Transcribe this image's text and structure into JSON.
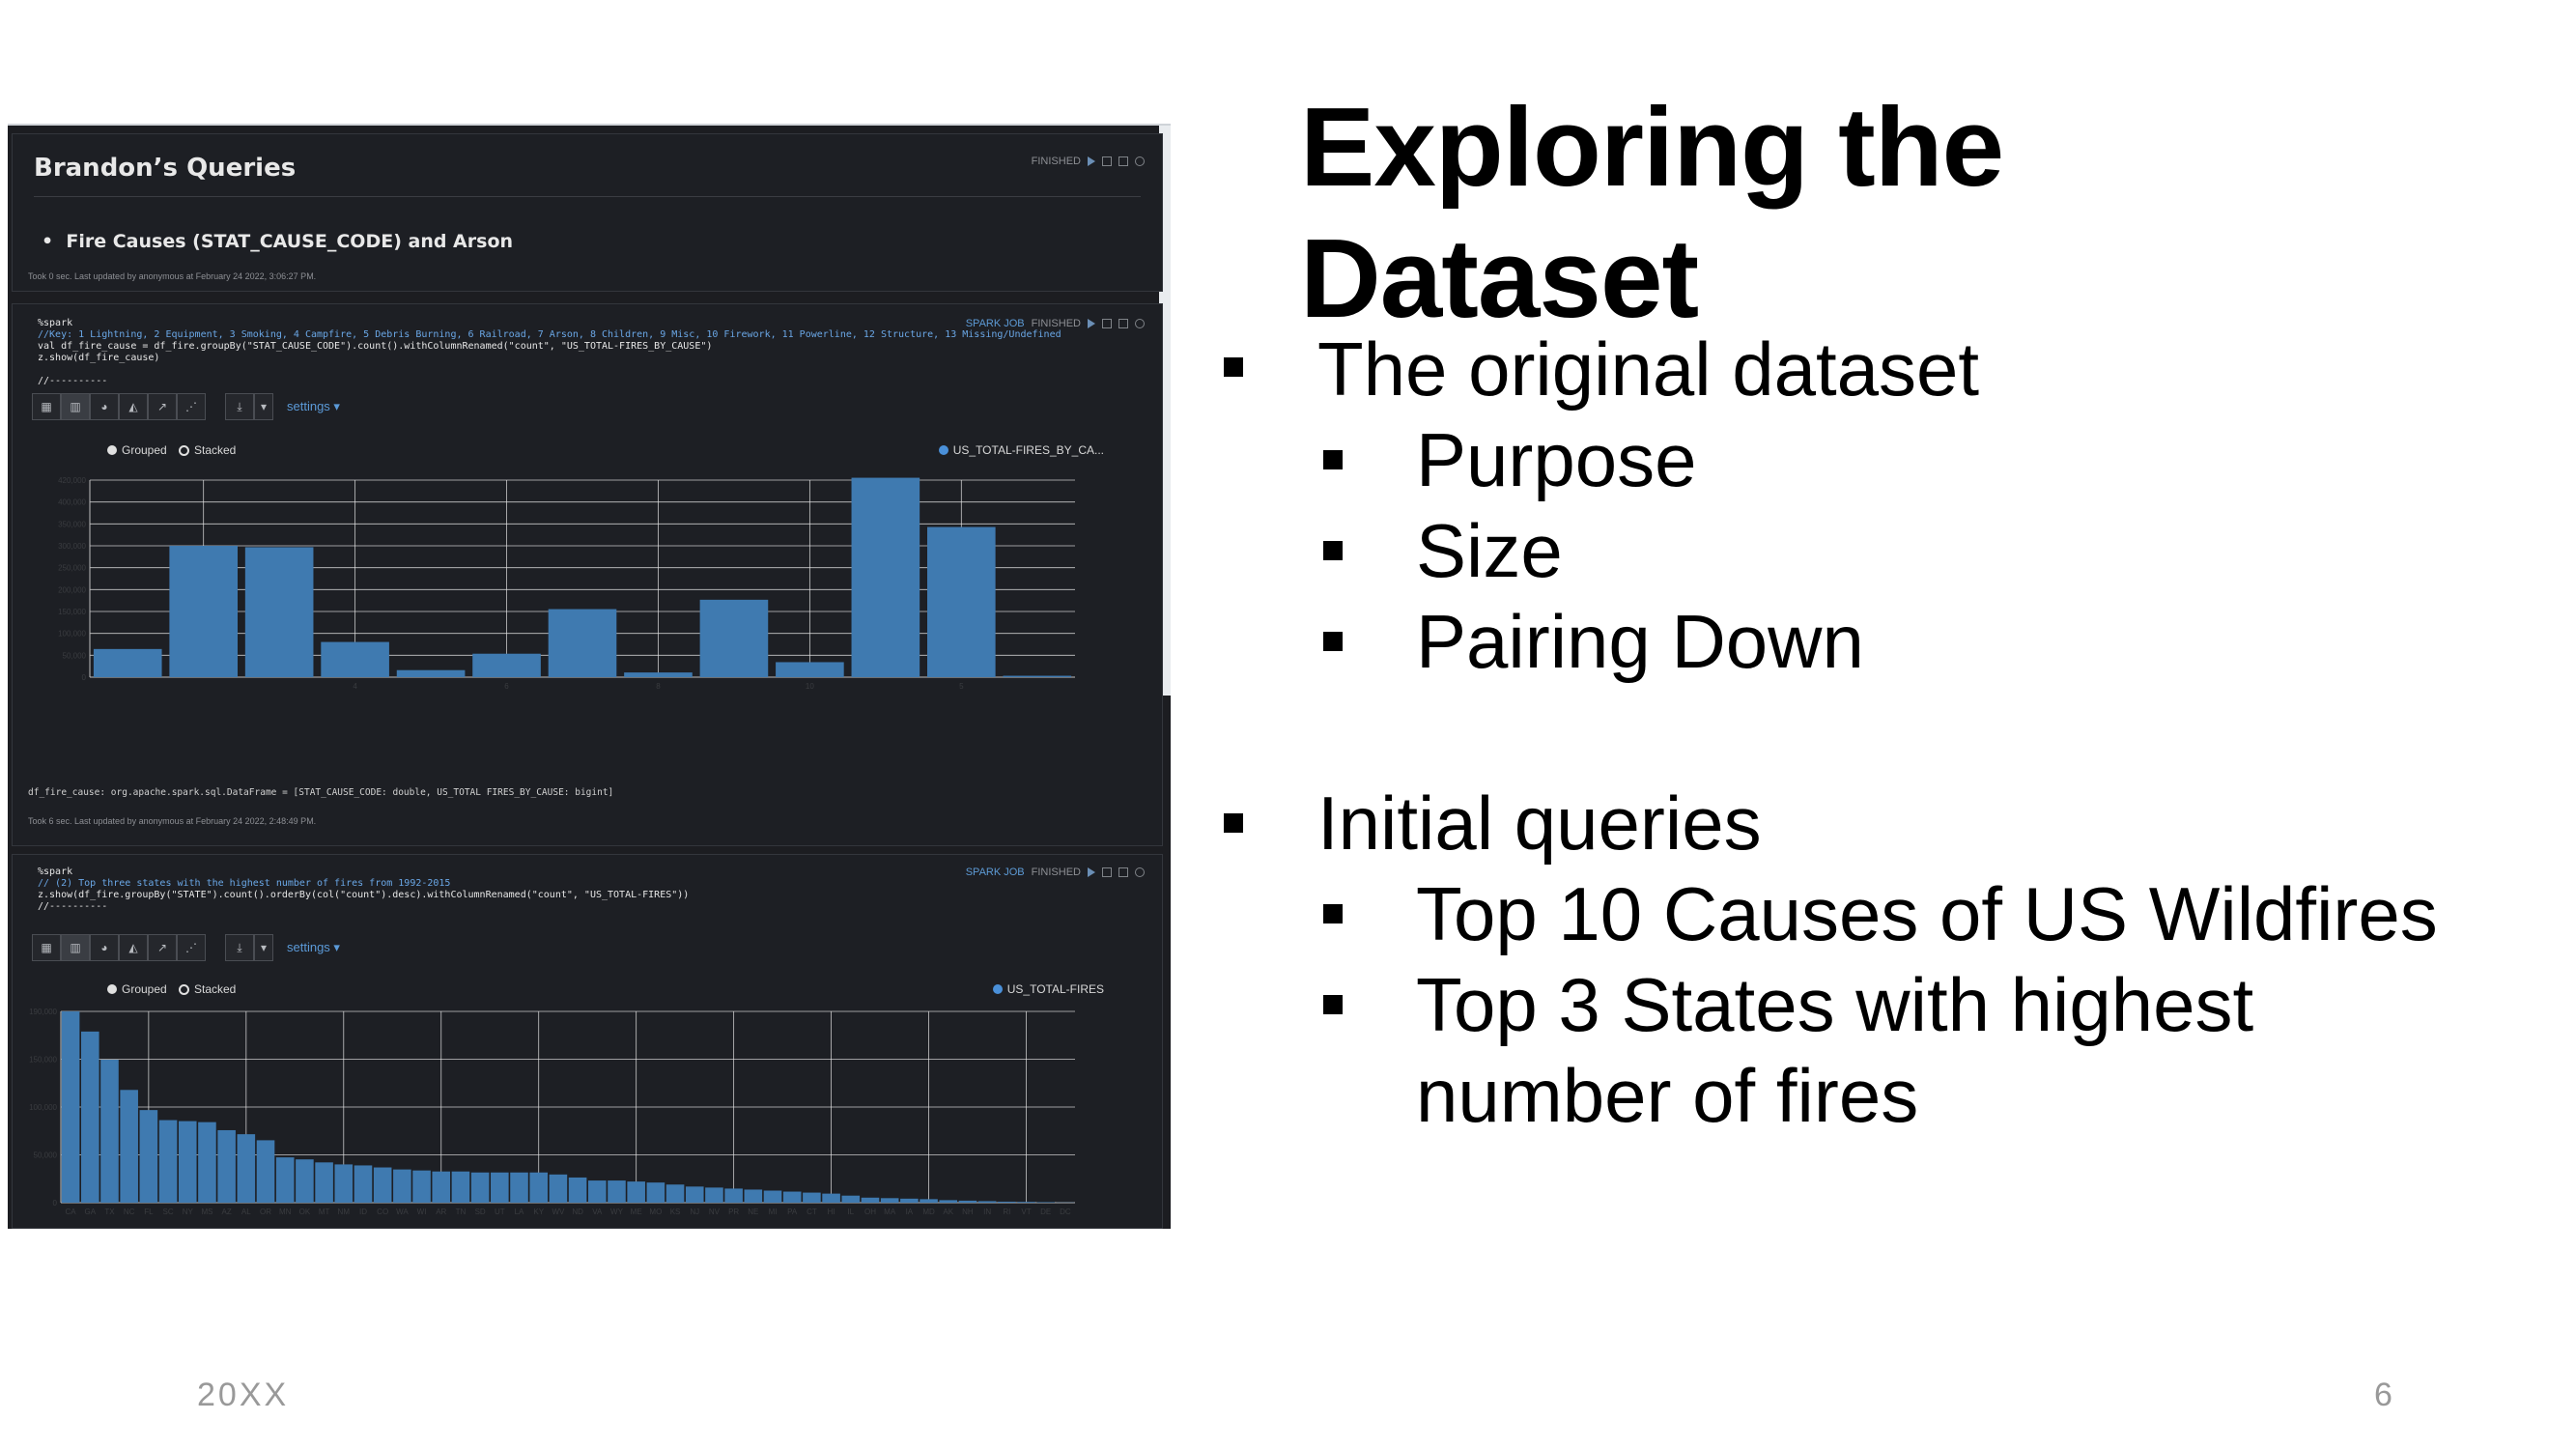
{
  "slide": {
    "title_line1": "Exploring the",
    "title_line2": "Dataset",
    "bullets": [
      {
        "text": "The original dataset",
        "sub": [
          "Purpose",
          "Size",
          "Pairing Down"
        ]
      },
      {
        "text": "Initial queries",
        "sub": [
          "Top 10 Causes of US Wildfires",
          "Top 3 States with highest",
          "number of fires"
        ]
      }
    ],
    "footer_left": "20XX",
    "page_number": "6"
  },
  "notebook": {
    "header": {
      "title": "Brandon’s Queries",
      "status": "FINISHED",
      "bullet": "Fire Causes (STAT_CAUSE_CODE) and Arson",
      "meta": "Took 0 sec. Last updated by anonymous at February 24 2022, 3:06:27 PM."
    },
    "para1": {
      "interpreter": "%spark",
      "comment": "//Key: 1 Lightning, 2 Equipment, 3 Smoking, 4 Campfire, 5 Debris Burning, 6 Railroad, 7 Arson, 8 Children, 9 Misc, 10 Firework, 11 Powerline, 12 Structure, 13 Missing/Undefined",
      "line2": "val df_fire_cause = df_fire.groupBy(\"STAT_CAUSE_CODE\").count().withColumnRenamed(\"count\", \"US_TOTAL-FIRES_BY_CAUSE\")",
      "line3": "z.show(df_fire_cause)",
      "line4": "//----------",
      "job_label": "SPARK JOB",
      "status": "FINISHED",
      "settings": "settings",
      "grouped": "Grouped",
      "stacked": "Stacked",
      "legend": "US_TOTAL-FIRES_BY_CA...",
      "result": "df_fire_cause: org.apache.spark.sql.DataFrame = [STAT_CAUSE_CODE: double, US_TOTAL FIRES_BY_CAUSE: bigint]",
      "meta": "Took 6 sec. Last updated by anonymous at February 24 2022, 2:48:49 PM."
    },
    "para2": {
      "interpreter": "%spark",
      "comment": "// (2) Top three states with the highest number of fires from 1992-2015",
      "line2": "z.show(df_fire.groupBy(\"STATE\").count().orderBy(col(\"count\").desc).withColumnRenamed(\"count\", \"US_TOTAL-FIRES\"))",
      "line3": "//----------",
      "job_label": "SPARK JOB",
      "status": "FINISHED",
      "settings": "settings",
      "grouped": "Grouped",
      "stacked": "Stacked",
      "legend": "US_TOTAL-FIRES"
    }
  },
  "chart_data": [
    {
      "type": "bar",
      "series": [
        {
          "name": "US_TOTAL-FIRES_BY_CA...",
          "values": [
            60000,
            280000,
            277000,
            75000,
            15000,
            50000,
            145000,
            10000,
            165000,
            32000,
            425000,
            320000,
            3000
          ]
        }
      ],
      "ylim": [
        0,
        420000
      ],
      "y_ticks": [
        "420,000",
        "400,000",
        "350,000",
        "300,000",
        "250,000",
        "200,000",
        "150,000",
        "100,000",
        "50,000",
        "0"
      ],
      "x_ticks": [
        "4",
        "8",
        "10",
        "6",
        "5"
      ],
      "grid": true,
      "legend": "top-right",
      "color": "#3f7ab0"
    },
    {
      "type": "bar",
      "series": [
        {
          "name": "US_TOTAL-FIRES",
          "values": [
            190000,
            170000,
            142000,
            112000,
            92000,
            82000,
            81000,
            80000,
            72000,
            68000,
            62000,
            45000,
            43000,
            40000,
            38000,
            37000,
            35000,
            33000,
            32000,
            31000,
            31000,
            30000,
            30000,
            30000,
            30000,
            28000,
            25000,
            22000,
            22000,
            21000,
            20000,
            18000,
            16000,
            15000,
            14000,
            13000,
            12000,
            11000,
            10000,
            9000,
            7000,
            5000,
            4500,
            4000,
            3500,
            2500,
            2000,
            1500,
            1000,
            800,
            500,
            200
          ]
        }
      ],
      "ylim": [
        0,
        190000
      ],
      "y_ticks": [
        "190,000",
        "150,000",
        "100,000",
        "50,000",
        "0"
      ],
      "x_ticks": [
        "CA",
        "GA",
        "TX",
        "NC",
        "FL",
        "SC",
        "NY",
        "MS",
        "AZ",
        "AL",
        "OR",
        "MN",
        "OK",
        "MT",
        "NM",
        "ID",
        "CO",
        "WA",
        "WI",
        "AR",
        "TN",
        "SD",
        "UT",
        "LA",
        "KY",
        "WV",
        "ND",
        "VA",
        "WY",
        "ME",
        "MO",
        "KS",
        "NJ",
        "NV",
        "PR",
        "NE",
        "MI",
        "PA",
        "CT",
        "HI",
        "IL",
        "OH",
        "MA",
        "IA",
        "MD",
        "AK",
        "NH",
        "IN",
        "RI",
        "VT",
        "DE",
        "DC"
      ],
      "grid": true,
      "legend": "top-right",
      "color": "#3f7ab0"
    }
  ]
}
